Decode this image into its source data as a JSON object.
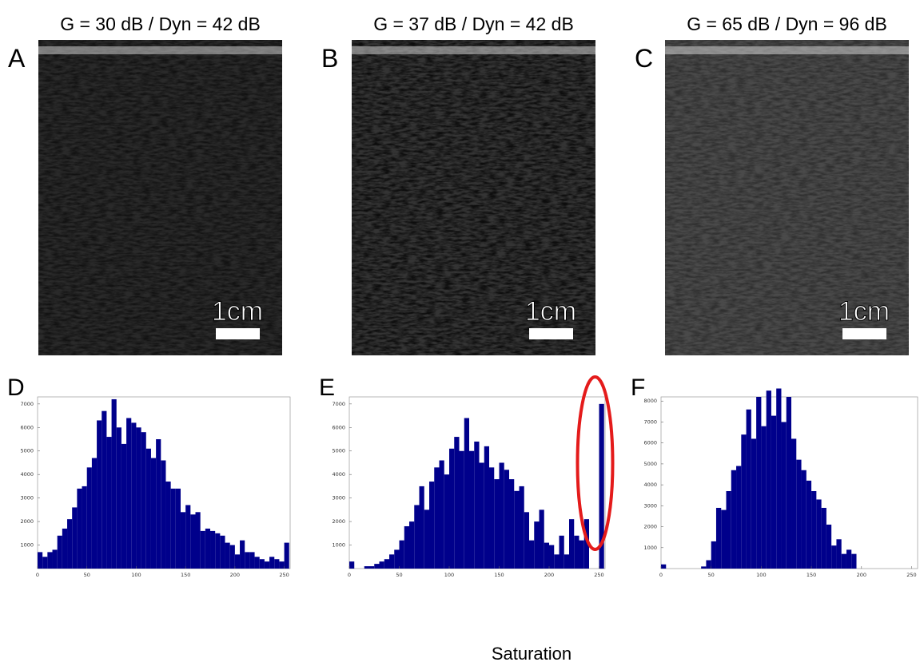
{
  "panels": [
    {
      "letter": "A",
      "title": "G = 30 dB / Dyn = 42 dB",
      "scale_label": "1cm"
    },
    {
      "letter": "B",
      "title": "G = 37 dB / Dyn = 42 dB",
      "scale_label": "1cm"
    },
    {
      "letter": "C",
      "title": "G = 65 dB / Dyn = 96 dB",
      "scale_label": "1cm"
    }
  ],
  "chart_data": [
    {
      "type": "histogram",
      "title": "D",
      "color": "#00008b",
      "bins": [
        0,
        5,
        10,
        15,
        20,
        25,
        30,
        35,
        40,
        45,
        50,
        55,
        60,
        65,
        70,
        75,
        80,
        85,
        90,
        95,
        100,
        105,
        110,
        115,
        120,
        125,
        130,
        135,
        140,
        145,
        150,
        155,
        160,
        165,
        170,
        175,
        180,
        185,
        190,
        195,
        200,
        205,
        210,
        215,
        220,
        225,
        230,
        235,
        240,
        245,
        250,
        255
      ],
      "values": [
        700,
        500,
        700,
        800,
        1400,
        1700,
        2100,
        2600,
        3400,
        3500,
        4300,
        4700,
        6300,
        6700,
        5600,
        7200,
        6000,
        5300,
        6400,
        6200,
        6000,
        5800,
        5100,
        4700,
        5500,
        4600,
        3700,
        3400,
        3400,
        2400,
        2700,
        2300,
        2400,
        1600,
        1700,
        1600,
        1500,
        1400,
        1100,
        1000,
        600,
        1200,
        700,
        700,
        500,
        400,
        300,
        500,
        400,
        300,
        1100
      ],
      "xlim": [
        0,
        256
      ],
      "xticks": [
        0,
        50,
        100,
        150,
        200,
        250
      ],
      "ylim": [
        0,
        7300
      ],
      "yticks": [
        1000,
        2000,
        3000,
        4000,
        5000,
        6000,
        7000
      ]
    },
    {
      "type": "histogram",
      "title": "E",
      "color": "#00008b",
      "annotation": "Saturation",
      "bins": [
        0,
        5,
        10,
        15,
        20,
        25,
        30,
        35,
        40,
        45,
        50,
        55,
        60,
        65,
        70,
        75,
        80,
        85,
        90,
        95,
        100,
        105,
        110,
        115,
        120,
        125,
        130,
        135,
        140,
        145,
        150,
        155,
        160,
        165,
        170,
        175,
        180,
        185,
        190,
        195,
        200,
        205,
        210,
        215,
        220,
        225,
        230,
        235,
        240,
        245,
        250,
        255
      ],
      "values": [
        300,
        0,
        0,
        100,
        100,
        200,
        300,
        400,
        600,
        800,
        1200,
        1800,
        2000,
        2700,
        3500,
        2500,
        3700,
        4300,
        4600,
        4000,
        5100,
        5600,
        5000,
        6400,
        5000,
        5400,
        4500,
        5200,
        4300,
        3800,
        4500,
        4200,
        3800,
        3300,
        3500,
        2400,
        1200,
        2000,
        2500,
        1100,
        1000,
        600,
        1400,
        600,
        2100,
        1400,
        1200,
        2100,
        0,
        0,
        7000
      ],
      "xlim": [
        0,
        256
      ],
      "xticks": [
        0,
        50,
        100,
        150,
        200,
        250
      ],
      "ylim": [
        0,
        7300
      ],
      "yticks": [
        1000,
        2000,
        3000,
        4000,
        5000,
        6000,
        7000
      ]
    },
    {
      "type": "histogram",
      "title": "F",
      "color": "#00008b",
      "bins": [
        0,
        5,
        10,
        15,
        20,
        25,
        30,
        35,
        40,
        45,
        50,
        55,
        60,
        65,
        70,
        75,
        80,
        85,
        90,
        95,
        100,
        105,
        110,
        115,
        120,
        125,
        130,
        135,
        140,
        145,
        150,
        155,
        160,
        165,
        170,
        175,
        180,
        185,
        190,
        195,
        200,
        205,
        210,
        215,
        220,
        225,
        230,
        235,
        240,
        245,
        250,
        255
      ],
      "values": [
        200,
        0,
        0,
        0,
        0,
        0,
        0,
        0,
        100,
        400,
        1300,
        2900,
        2800,
        3700,
        4700,
        4900,
        6400,
        7600,
        6200,
        8200,
        6800,
        8500,
        7300,
        8600,
        7000,
        8200,
        6200,
        5200,
        4700,
        4200,
        3700,
        3300,
        2900,
        2100,
        1100,
        1400,
        700,
        900,
        700,
        0,
        0,
        0,
        0,
        0,
        0,
        0,
        0,
        0,
        0,
        0,
        0
      ],
      "xlim": [
        0,
        256
      ],
      "xticks": [
        0,
        50,
        100,
        150,
        200,
        250
      ],
      "ylim": [
        0,
        8200
      ],
      "yticks": [
        1000,
        2000,
        3000,
        4000,
        5000,
        6000,
        7000,
        8000
      ]
    }
  ]
}
